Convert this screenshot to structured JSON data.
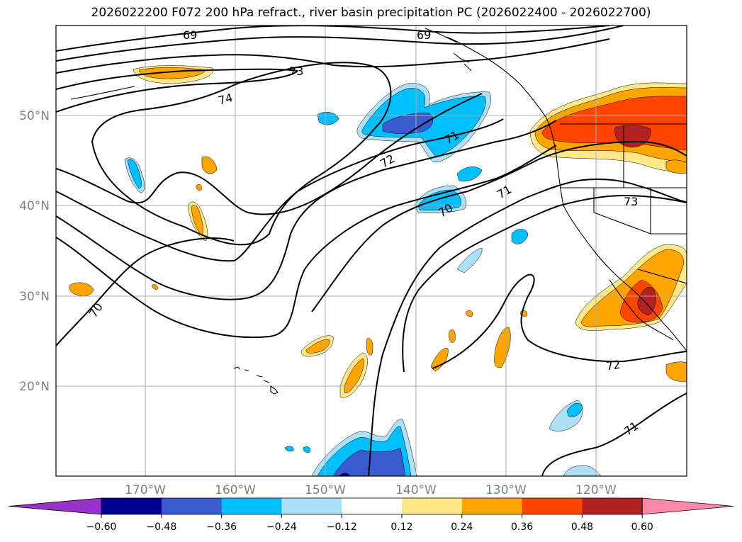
{
  "title": "2026022200 F072 200 hPa refract., river basin precipitation PC (2026022400 - 2026022700)",
  "map": {
    "lat_labels": [
      "50°N",
      "40°N",
      "30°N",
      "20°N"
    ],
    "lon_labels": [
      "170°W",
      "160°W",
      "150°W",
      "140°W",
      "130°W",
      "120°W"
    ],
    "contour_labels": [
      "69",
      "69",
      "73",
      "74",
      "72",
      "71",
      "71",
      "70",
      "73",
      "70",
      "72",
      "71"
    ]
  },
  "colorbar": {
    "ticks": [
      "−0.60",
      "−0.48",
      "−0.36",
      "−0.24",
      "−0.12",
      "0.12",
      "0.24",
      "0.36",
      "0.48",
      "0.60"
    ],
    "colors": [
      "#9932CC",
      "#00008B",
      "#3A5BD0",
      "#00BFFF",
      "#ADE1F7",
      "#FFFFFF",
      "#FFE88A",
      "#FFA500",
      "#FF4500",
      "#B22222",
      "#FF88AA"
    ]
  },
  "colors": {
    "neg_light": "#ADE1F7",
    "neg_mid": "#00BFFF",
    "neg_strong": "#3A5BD0",
    "neg_max": "#00008B",
    "pos_light": "#FFE88A",
    "pos_mid": "#FFA500",
    "pos_strong": "#FF4500",
    "pos_max": "#B22222",
    "grid": "#AAAAAA"
  }
}
